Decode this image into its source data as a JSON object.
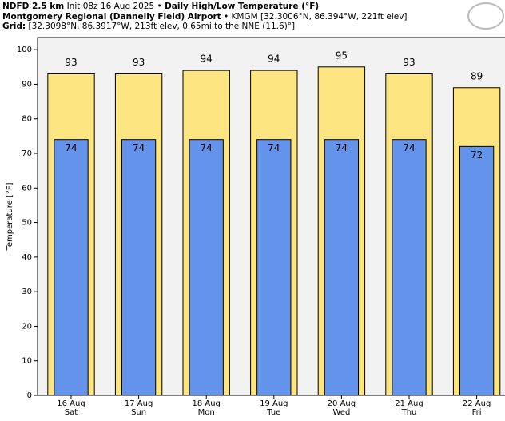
{
  "header": {
    "model": "NDFD 2.5 km",
    "init": "Init 08z 16 Aug 2025",
    "separator": "•",
    "title": "Daily High/Low Temperature (°F)",
    "location": "Montgomery Regional (Dannelly Field) Airport",
    "station": "KMGM [32.3006°N, 86.394°W, 221ft elev]",
    "grid_label": "Grid:",
    "grid_info": "[32.3098°N, 86.3917°W, 213ft elev, 0.65mi to the NNE (11.6)°]"
  },
  "chart_data": {
    "type": "bar",
    "y_label": "Temperature [°F]",
    "categories": [
      "16 Aug",
      "17 Aug",
      "18 Aug",
      "19 Aug",
      "20 Aug",
      "21 Aug",
      "22 Aug"
    ],
    "weekdays": [
      "Sat",
      "Sun",
      "Mon",
      "Tue",
      "Wed",
      "Thu",
      "Fri"
    ],
    "series": [
      {
        "color": "#fde581",
        "values": [
          93,
          93,
          94,
          94,
          95,
          93,
          89
        ]
      },
      {
        "color": "#6393ea",
        "values": [
          74,
          74,
          74,
          74,
          74,
          74,
          72
        ]
      }
    ],
    "ylim": [
      0,
      103.5
    ],
    "yticks": [
      0,
      10,
      20,
      30,
      40,
      50,
      60,
      70,
      80,
      90,
      100
    ]
  }
}
